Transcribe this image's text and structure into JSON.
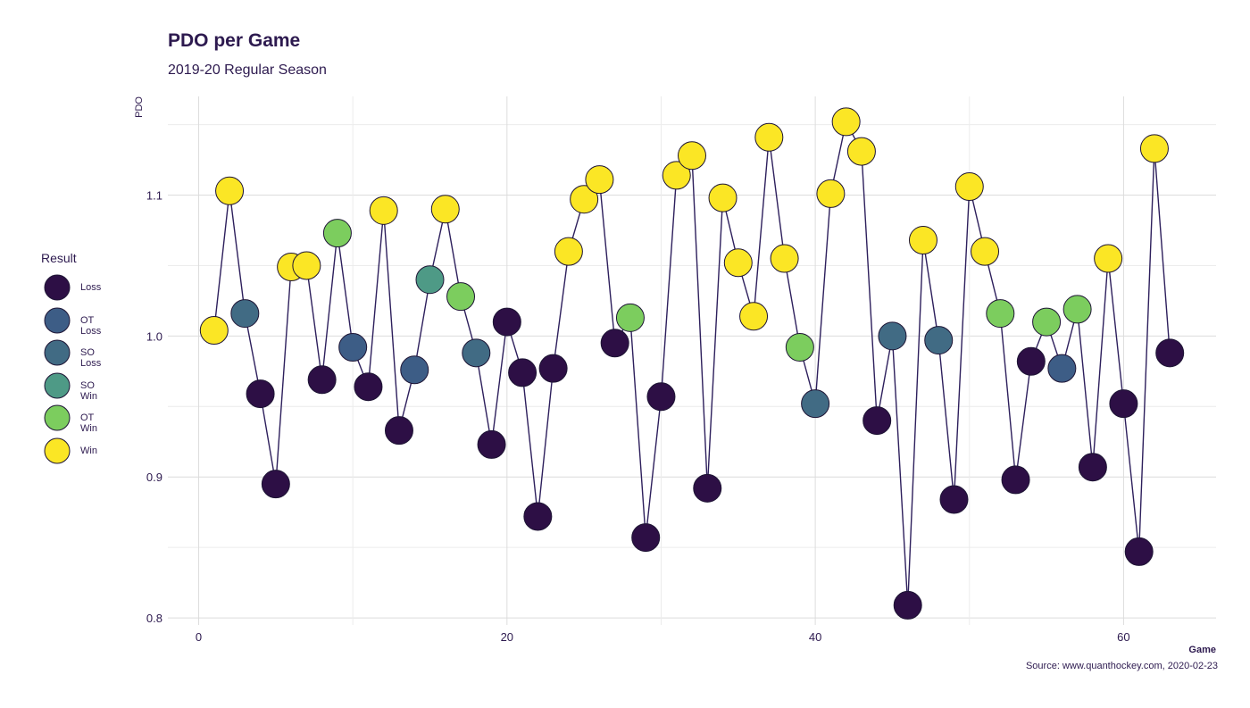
{
  "chart_data": {
    "type": "line",
    "title": "PDO per Game",
    "subtitle": "2019-20 Regular Season",
    "xlabel": "Game",
    "ylabel": "PDO",
    "caption": "Source: www.quanthockey.com, 2020-02-23",
    "xlim": [
      -2,
      66
    ],
    "ylim": [
      0.795,
      1.17
    ],
    "xticks": [
      0,
      20,
      40,
      60
    ],
    "yticks": [
      0.8,
      0.9,
      1.0,
      1.1
    ],
    "ytick_labels": [
      "0.8",
      "0.9",
      "1.0",
      "1.1"
    ],
    "grid": true,
    "legend_title": "Result",
    "legend_position": "left",
    "legend": [
      {
        "result": "Loss",
        "label": "Loss",
        "color": "#2d0f45"
      },
      {
        "result": "OT Loss",
        "label": "OT Loss",
        "color": "#3d5d86"
      },
      {
        "result": "SO Loss",
        "label": "SO Loss",
        "color": "#416b84"
      },
      {
        "result": "SO Win",
        "label": "SO Win",
        "color": "#4e9a86"
      },
      {
        "result": "OT Win",
        "label": "OT Win",
        "color": "#7ccd5e"
      },
      {
        "result": "Win",
        "label": "Win",
        "color": "#fbe625"
      }
    ],
    "points": [
      {
        "x": 1,
        "y": 1.004,
        "result": "Win"
      },
      {
        "x": 2,
        "y": 1.103,
        "result": "Win"
      },
      {
        "x": 3,
        "y": 1.016,
        "result": "SO Loss"
      },
      {
        "x": 4,
        "y": 0.959,
        "result": "Loss"
      },
      {
        "x": 5,
        "y": 0.895,
        "result": "Loss"
      },
      {
        "x": 6,
        "y": 1.049,
        "result": "Win"
      },
      {
        "x": 7,
        "y": 1.05,
        "result": "Win"
      },
      {
        "x": 8,
        "y": 0.969,
        "result": "Loss"
      },
      {
        "x": 9,
        "y": 1.073,
        "result": "OT Win"
      },
      {
        "x": 10,
        "y": 0.992,
        "result": "OT Loss"
      },
      {
        "x": 11,
        "y": 0.964,
        "result": "Loss"
      },
      {
        "x": 12,
        "y": 1.089,
        "result": "Win"
      },
      {
        "x": 13,
        "y": 0.933,
        "result": "Loss"
      },
      {
        "x": 14,
        "y": 0.976,
        "result": "OT Loss"
      },
      {
        "x": 15,
        "y": 1.04,
        "result": "SO Win"
      },
      {
        "x": 16,
        "y": 1.09,
        "result": "Win"
      },
      {
        "x": 17,
        "y": 1.028,
        "result": "OT Win"
      },
      {
        "x": 18,
        "y": 0.988,
        "result": "SO Loss"
      },
      {
        "x": 19,
        "y": 0.923,
        "result": "Loss"
      },
      {
        "x": 20,
        "y": 1.01,
        "result": "Loss"
      },
      {
        "x": 21,
        "y": 0.974,
        "result": "Loss"
      },
      {
        "x": 22,
        "y": 0.872,
        "result": "Loss"
      },
      {
        "x": 23,
        "y": 0.977,
        "result": "Loss"
      },
      {
        "x": 24,
        "y": 1.06,
        "result": "Win"
      },
      {
        "x": 25,
        "y": 1.097,
        "result": "Win"
      },
      {
        "x": 26,
        "y": 1.111,
        "result": "Win"
      },
      {
        "x": 27,
        "y": 0.995,
        "result": "Loss"
      },
      {
        "x": 28,
        "y": 1.013,
        "result": "OT Win"
      },
      {
        "x": 29,
        "y": 0.857,
        "result": "Loss"
      },
      {
        "x": 30,
        "y": 0.957,
        "result": "Loss"
      },
      {
        "x": 31,
        "y": 1.114,
        "result": "Win"
      },
      {
        "x": 32,
        "y": 1.128,
        "result": "Win"
      },
      {
        "x": 33,
        "y": 0.892,
        "result": "Loss"
      },
      {
        "x": 34,
        "y": 1.098,
        "result": "Win"
      },
      {
        "x": 35,
        "y": 1.052,
        "result": "Win"
      },
      {
        "x": 36,
        "y": 1.014,
        "result": "Win"
      },
      {
        "x": 37,
        "y": 1.141,
        "result": "Win"
      },
      {
        "x": 38,
        "y": 1.055,
        "result": "Win"
      },
      {
        "x": 39,
        "y": 0.992,
        "result": "OT Win"
      },
      {
        "x": 40,
        "y": 0.952,
        "result": "SO Loss"
      },
      {
        "x": 41,
        "y": 1.101,
        "result": "Win"
      },
      {
        "x": 42,
        "y": 1.152,
        "result": "Win"
      },
      {
        "x": 43,
        "y": 1.131,
        "result": "Win"
      },
      {
        "x": 44,
        "y": 0.94,
        "result": "Loss"
      },
      {
        "x": 45,
        "y": 1.0,
        "result": "SO Loss"
      },
      {
        "x": 46,
        "y": 0.809,
        "result": "Loss"
      },
      {
        "x": 47,
        "y": 1.068,
        "result": "Win"
      },
      {
        "x": 48,
        "y": 0.997,
        "result": "SO Loss"
      },
      {
        "x": 49,
        "y": 0.884,
        "result": "Loss"
      },
      {
        "x": 50,
        "y": 1.106,
        "result": "Win"
      },
      {
        "x": 51,
        "y": 1.06,
        "result": "Win"
      },
      {
        "x": 52,
        "y": 1.016,
        "result": "OT Win"
      },
      {
        "x": 53,
        "y": 0.898,
        "result": "Loss"
      },
      {
        "x": 54,
        "y": 0.982,
        "result": "Loss"
      },
      {
        "x": 55,
        "y": 1.01,
        "result": "OT Win"
      },
      {
        "x": 56,
        "y": 0.977,
        "result": "OT Loss"
      },
      {
        "x": 57,
        "y": 1.019,
        "result": "OT Win"
      },
      {
        "x": 58,
        "y": 0.907,
        "result": "Loss"
      },
      {
        "x": 59,
        "y": 1.055,
        "result": "Win"
      },
      {
        "x": 60,
        "y": 0.952,
        "result": "Loss"
      },
      {
        "x": 61,
        "y": 0.847,
        "result": "Loss"
      },
      {
        "x": 62,
        "y": 1.133,
        "result": "Win"
      },
      {
        "x": 63,
        "y": 0.988,
        "result": "Loss"
      }
    ]
  }
}
